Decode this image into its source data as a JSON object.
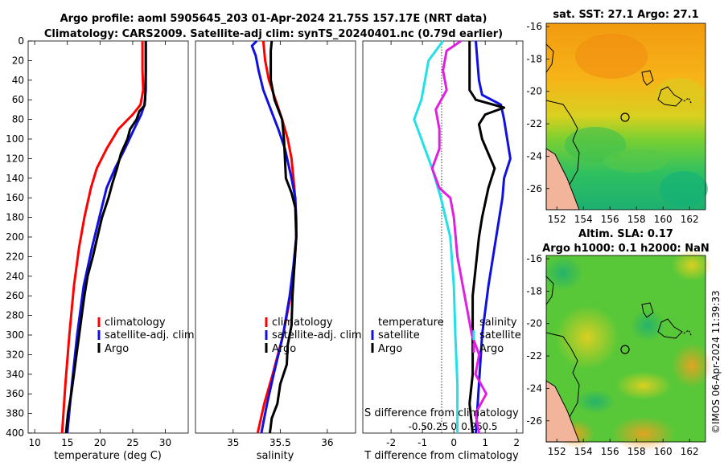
{
  "title": {
    "line1": "Argo profile: aoml 5905645_203 01-Apr-2024 21.75S 157.17E (NRT data)",
    "line2": "Climatology: CARS2009. Satellite-adj clim: synTS_20240401.nc (0.79d earlier)"
  },
  "watermark": "©IMOS 06-Apr-2024 11:39:33",
  "colors": {
    "red": "#ff0000",
    "blue": "#1010e0",
    "black": "#000000",
    "cyan": "#22e0e8",
    "magenta": "#e020e0"
  },
  "chart_data": [
    {
      "id": "temperature",
      "type": "line",
      "xlabel": "temperature (deg C)",
      "ylabel": "",
      "xlim": [
        9,
        33.5
      ],
      "ylim": [
        400,
        0
      ],
      "xticks": [
        10,
        15,
        20,
        25,
        30
      ],
      "yticks": [
        0,
        20,
        40,
        60,
        80,
        100,
        120,
        140,
        160,
        180,
        200,
        220,
        240,
        260,
        280,
        300,
        320,
        340,
        360,
        380,
        400
      ],
      "legend": [
        "climatology",
        "satellite-adj. clim",
        "Argo"
      ],
      "series": [
        {
          "name": "climatology",
          "color": "red",
          "depth": [
            0,
            30,
            50,
            65,
            75,
            90,
            110,
            130,
            150,
            180,
            210,
            250,
            300,
            350,
            400
          ],
          "values": [
            26.5,
            26.5,
            26.6,
            26.2,
            25.0,
            22.8,
            21.0,
            19.5,
            18.6,
            17.6,
            16.8,
            16.0,
            15.3,
            14.7,
            14.2
          ]
        },
        {
          "name": "satellite-adj. clim",
          "color": "blue",
          "depth": [
            0,
            30,
            50,
            65,
            75,
            90,
            110,
            130,
            150,
            180,
            210,
            250,
            300,
            350,
            400
          ],
          "values": [
            27.0,
            27.0,
            27.0,
            26.8,
            26.3,
            25.2,
            23.8,
            22.3,
            21.0,
            19.9,
            18.8,
            17.5,
            16.5,
            15.7,
            15.0
          ]
        },
        {
          "name": "Argo",
          "color": "black",
          "depth": [
            0,
            30,
            60,
            66,
            72,
            80,
            90,
            100,
            115,
            130,
            145,
            160,
            180,
            200,
            220,
            240,
            260,
            280,
            300,
            320,
            340,
            360,
            380,
            400
          ],
          "values": [
            27.0,
            27.0,
            26.9,
            26.8,
            26.0,
            25.6,
            24.6,
            24.2,
            23.2,
            22.6,
            21.9,
            21.3,
            20.3,
            19.6,
            18.9,
            18.1,
            17.6,
            17.2,
            16.8,
            16.4,
            16.0,
            15.6,
            15.1,
            14.8
          ]
        }
      ]
    },
    {
      "id": "salinity",
      "type": "line",
      "xlabel": "salinity",
      "xlim": [
        34.6,
        36.3
      ],
      "ylim": [
        400,
        0
      ],
      "xticks": [
        35,
        35.5,
        36
      ],
      "legend": [
        "climatology",
        "satellite-adj. clim",
        "Argo"
      ],
      "series": [
        {
          "name": "climatology",
          "color": "red",
          "depth": [
            0,
            20,
            40,
            60,
            80,
            100,
            120,
            150,
            180,
            200,
            230,
            260,
            300,
            340,
            370,
            400
          ],
          "values": [
            35.32,
            35.34,
            35.38,
            35.45,
            35.52,
            35.58,
            35.62,
            35.65,
            35.67,
            35.67,
            35.65,
            35.61,
            35.53,
            35.42,
            35.33,
            35.26
          ]
        },
        {
          "name": "satellite-adj. clim",
          "color": "blue",
          "depth": [
            0,
            5,
            15,
            30,
            50,
            70,
            90,
            110,
            140,
            160,
            190,
            200,
            230,
            260,
            300,
            340,
            370,
            400
          ],
          "values": [
            35.25,
            35.2,
            35.24,
            35.27,
            35.32,
            35.4,
            35.48,
            35.55,
            35.62,
            35.66,
            35.67,
            35.67,
            35.64,
            35.6,
            35.53,
            35.43,
            35.36,
            35.3
          ]
        },
        {
          "name": "Argo",
          "color": "black",
          "depth": [
            0,
            10,
            40,
            60,
            70,
            80,
            100,
            120,
            140,
            155,
            170,
            200,
            230,
            260,
            290,
            310,
            330,
            350,
            370,
            385,
            400
          ],
          "values": [
            35.41,
            35.4,
            35.4,
            35.44,
            35.48,
            35.52,
            35.54,
            35.55,
            35.56,
            35.62,
            35.66,
            35.67,
            35.65,
            35.63,
            35.62,
            35.58,
            35.57,
            35.5,
            35.47,
            35.41,
            35.39
          ]
        }
      ]
    },
    {
      "id": "difference",
      "type": "line",
      "xlabel": "T difference from climatology",
      "x2label": "S difference from climatology",
      "xlim": [
        -2.9,
        2.2
      ],
      "ylim": [
        400,
        0
      ],
      "xticks": [
        -2,
        -1,
        0,
        1,
        2
      ],
      "x2ticks": [
        -0.5,
        -0.25,
        0,
        0.25,
        0.5
      ],
      "legend_left_title": "temperature",
      "legend_right_title": "salinity",
      "legend_left": [
        "satellite",
        "Argo"
      ],
      "legend_right": [
        "satellite",
        "Argo"
      ],
      "series": [
        {
          "name": "T satellite",
          "color": "blue",
          "depth": [
            0,
            20,
            40,
            55,
            65,
            80,
            100,
            120,
            140,
            160,
            180,
            200,
            250,
            300,
            350,
            400
          ],
          "values": [
            0.7,
            0.75,
            0.8,
            0.9,
            1.5,
            1.6,
            1.7,
            1.8,
            1.6,
            1.55,
            1.45,
            1.35,
            1.1,
            0.9,
            0.8,
            0.7
          ]
        },
        {
          "name": "T Argo",
          "color": "black",
          "depth": [
            0,
            50,
            60,
            68,
            75,
            85,
            100,
            130,
            150,
            180,
            200,
            230,
            260,
            300,
            340,
            370,
            400
          ],
          "values": [
            0.5,
            0.5,
            0.7,
            1.6,
            1.0,
            0.8,
            0.9,
            1.3,
            1.1,
            0.9,
            0.8,
            0.7,
            0.6,
            0.6,
            0.6,
            0.5,
            0.6
          ]
        },
        {
          "name": "S satellite",
          "color": "cyan",
          "depth": [
            0,
            20,
            40,
            60,
            80,
            100,
            130,
            160,
            200,
            250,
            300,
            350,
            400
          ],
          "values": [
            -0.15,
            -0.35,
            -0.4,
            -0.45,
            -0.55,
            -0.45,
            -0.3,
            -0.18,
            -0.05,
            0.0,
            0.02,
            0.05,
            0.05
          ]
        },
        {
          "name": "S Argo",
          "color": "magenta",
          "depth": [
            0,
            10,
            30,
            50,
            70,
            90,
            110,
            130,
            150,
            160,
            180,
            220,
            260,
            300,
            320,
            340,
            360,
            380,
            400
          ],
          "values": [
            0.1,
            -0.1,
            -0.15,
            -0.1,
            -0.25,
            -0.2,
            -0.2,
            -0.3,
            -0.2,
            -0.05,
            0.0,
            0.05,
            0.15,
            0.25,
            0.35,
            0.3,
            0.45,
            0.3,
            0.35
          ]
        }
      ]
    },
    {
      "id": "sst_map",
      "type": "heatmap",
      "title": "sat. SST: 27.1 Argo: 27.1",
      "xticks": [
        152,
        154,
        156,
        158,
        160,
        162
      ],
      "yticks": [
        -16,
        -18,
        -20,
        -22,
        -24,
        -26
      ],
      "xlim": [
        151.2,
        163.2
      ],
      "ylim": [
        -27.3,
        -15.8
      ],
      "argo_position": [
        157.17,
        -21.75
      ]
    },
    {
      "id": "sla_map",
      "type": "heatmap",
      "title_line1": "Altim. SLA: 0.17",
      "title_line2": "Argo h1000: 0.1 h2000: NaN",
      "xticks": [
        152,
        154,
        156,
        158,
        160,
        162
      ],
      "yticks": [
        -16,
        -18,
        -20,
        -22,
        -24,
        -26
      ],
      "xlim": [
        151.2,
        163.2
      ],
      "ylim": [
        -27.3,
        -15.8
      ],
      "argo_position": [
        157.17,
        -21.75
      ]
    }
  ]
}
